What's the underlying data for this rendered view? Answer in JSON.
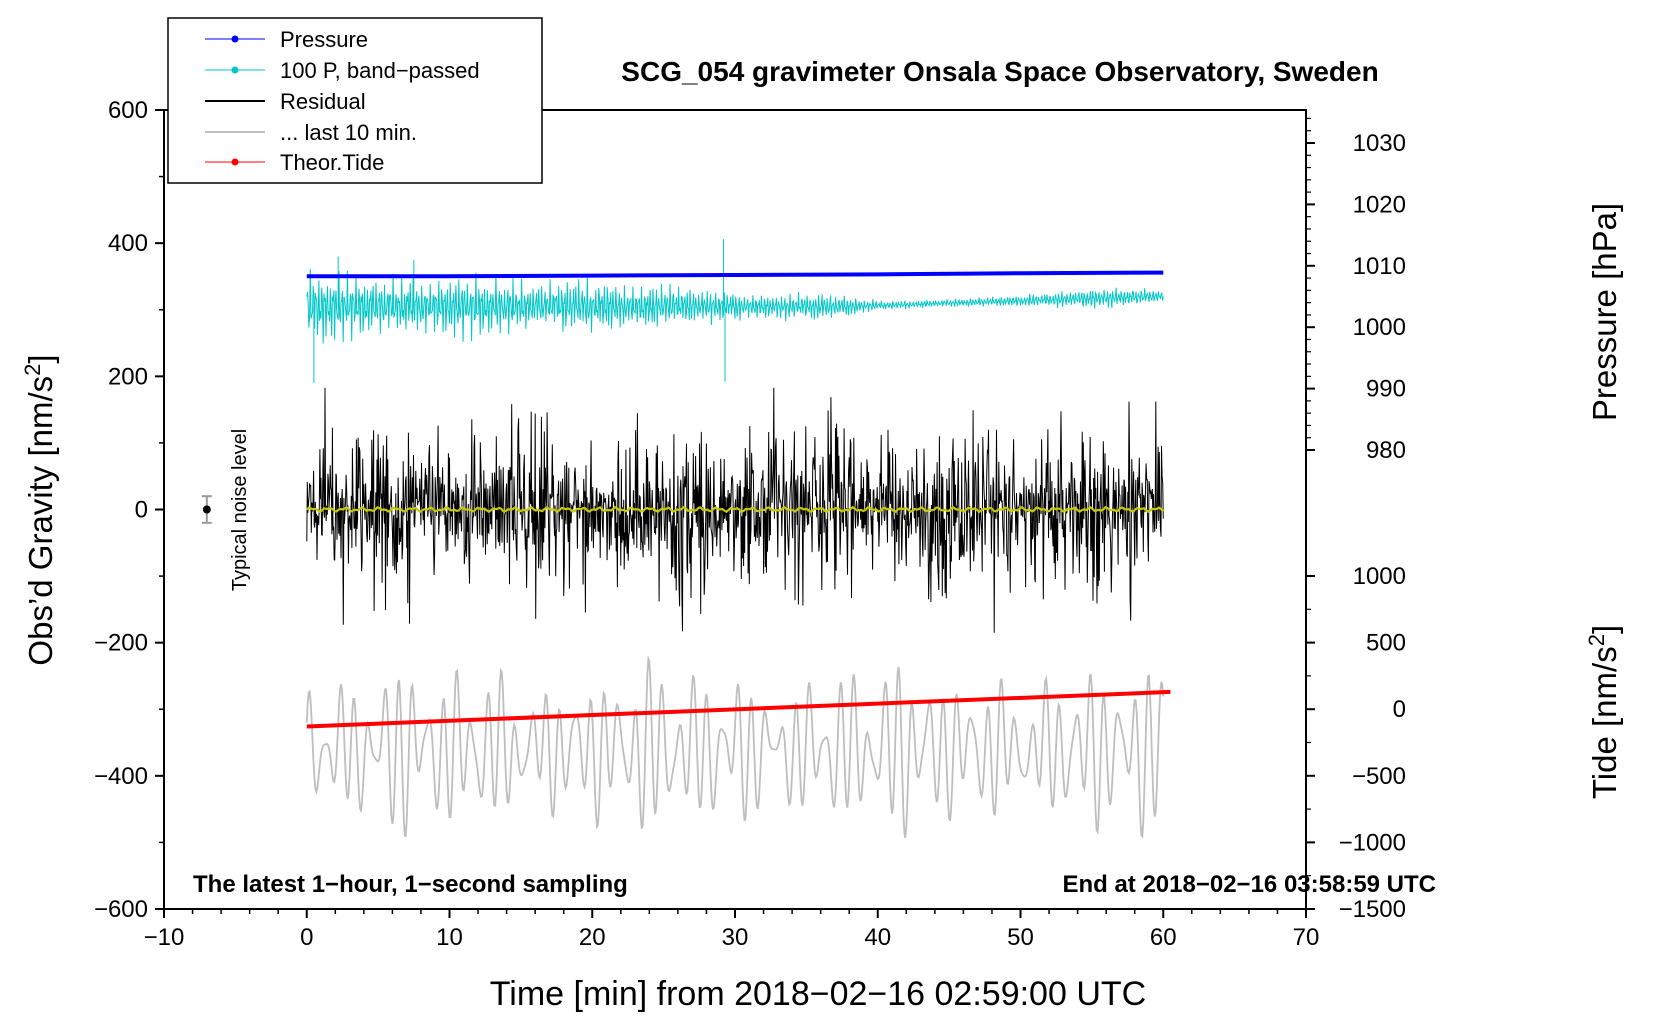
{
  "chart_data": {
    "type": "line",
    "title": "SCG_054 gravimeter Onsala Space Observatory, Sweden",
    "xlabel": "Time [min] from 2018−02−16 02:59:00 UTC",
    "ylabel_left": "Obs’d Gravity [nm/s",
    "ylabel_left_sup": "2",
    "ylabel_left_close": "]",
    "ylabel_right_pressure": "Pressure [hPa]",
    "ylabel_right_tide": "Tide [nm/s",
    "ylabel_right_tide_sup": "2",
    "ylabel_right_tide_close": "]",
    "xlim": [
      -10,
      70
    ],
    "ylim": [
      -600,
      600
    ],
    "x_ticks": [
      "−10",
      "0",
      "10",
      "20",
      "30",
      "40",
      "50",
      "60",
      "70"
    ],
    "y_ticks": [
      "600",
      "400",
      "200",
      "0",
      "−200",
      "−400",
      "−600"
    ],
    "pressure_axis": {
      "ticks": [
        "1030",
        "1020",
        "1010",
        "1000",
        "990",
        "980"
      ],
      "values": [
        1030,
        1020,
        1010,
        1000,
        990,
        980
      ]
    },
    "tide_axis": {
      "ticks": [
        "1000",
        "500",
        "0",
        "−500",
        "−1000",
        "−1500"
      ],
      "values": [
        1000,
        500,
        0,
        -500,
        -1000,
        -1500
      ]
    },
    "legend": [
      {
        "label": "Pressure",
        "color": "#0000ff",
        "style": "line-dot"
      },
      {
        "label": "100 P, band−passed",
        "color": "#00c8c8",
        "style": "line-dot"
      },
      {
        "label": "Residual",
        "color": "#000000",
        "style": "line"
      },
      {
        "label": "... last 10 min.",
        "color": "#bebebe",
        "style": "line"
      },
      {
        "label": "Theor.Tide",
        "color": "#ff0000",
        "style": "line-dot"
      }
    ],
    "series": [
      {
        "name": "Pressure",
        "axis": "pressure",
        "color": "#0000ff",
        "x": [
          0,
          10,
          20,
          30,
          40,
          50,
          60
        ],
        "values": [
          1008.3,
          1008.3,
          1008.4,
          1008.5,
          1008.6,
          1008.8,
          1008.9
        ]
      },
      {
        "name": "100 P, band−passed",
        "axis": "gravity",
        "color": "#00c8c8",
        "x_range": [
          0,
          60
        ],
        "center": 305,
        "amplitude_envelope": [
          80,
          60,
          55,
          60,
          50,
          55,
          45,
          35,
          25,
          30,
          10,
          8,
          10,
          15,
          22,
          14
        ],
        "extremes": [
          406,
          188
        ]
      },
      {
        "name": "Residual",
        "axis": "gravity",
        "color": "#000000",
        "x_range": [
          0,
          60
        ],
        "center": 0,
        "max": 183,
        "min": -185
      },
      {
        "name": "Yellow mean",
        "axis": "gravity",
        "color": "#c8c800",
        "x_range": [
          0,
          60
        ],
        "center": 0
      },
      {
        "name": "... last 10 min.",
        "axis": "gravity",
        "color": "#bebebe",
        "x_range": [
          0,
          60
        ],
        "center": -360,
        "max": -200,
        "min": -545
      },
      {
        "name": "Theor.Tide",
        "axis": "tide",
        "color": "#ff0000",
        "x": [
          0,
          60.5
        ],
        "values": [
          -130,
          130
        ]
      }
    ],
    "noise_marker": {
      "label": "Typical noise level",
      "x": -7,
      "y": 0,
      "error": 20
    },
    "annotation_left": "The latest 1−hour, 1−second sampling",
    "annotation_right": "End at 2018−02−16 03:58:59 UTC"
  }
}
